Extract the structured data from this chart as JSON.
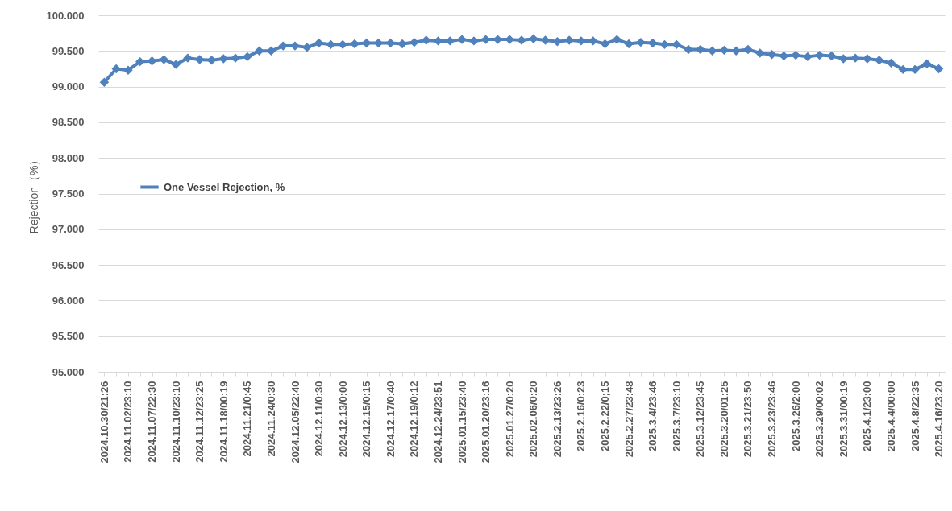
{
  "chart_data": {
    "type": "line",
    "ylabel": "Rejection（%）",
    "categories": [
      "2024.10.30/21:26",
      null,
      "2024.11.02/23:10",
      null,
      "2024.11.07/22:30",
      null,
      "2024.11.10/23:10",
      null,
      "2024.11.12/23:25",
      null,
      "2024.11.18/00:19",
      null,
      "2024.11.21/0:45",
      null,
      "2024.11.24/0:30",
      null,
      "2024.12.05/22:40",
      null,
      "2024.12.11/0:30",
      null,
      "2024.12.13/0:00",
      null,
      "2024.12.15/0:15",
      null,
      "2024.12.17/0:40",
      null,
      "2024.12.19/0:12",
      null,
      "2024.12.24/23:51",
      null,
      "2025.01.15/23:40",
      null,
      "2025.01.20/23:16",
      null,
      "2025.01.27/0:20",
      null,
      "2025.02.06/0:20",
      null,
      "2025.2.13/23:26",
      null,
      "2025.2.16/0:23",
      null,
      "2025.2.22/0;15",
      null,
      "2025.2.27/23:48",
      null,
      "2025.3.4/23:46",
      null,
      "2025.3.7/23:10",
      null,
      "2025.3.12/23:45",
      null,
      "2025.3.20/01:25",
      null,
      "2025.3.21/23:50",
      null,
      "2025.3.23/23:46",
      null,
      "2025.3.26/2:00",
      null,
      "2025.3.29/00:02",
      null,
      "2025.3.31/00:19",
      null,
      "2025.4.1/23:00",
      null,
      "2025.4.4/00:00",
      null,
      "2025.4.8/22:35",
      null,
      "2025.4.16/23:20"
    ],
    "series": [
      {
        "name": "One Vessel Rejection, %",
        "color": "#4f81bd",
        "values": [
          99.06,
          99.25,
          99.23,
          99.35,
          99.36,
          99.38,
          99.31,
          99.4,
          99.38,
          99.37,
          99.39,
          99.4,
          99.42,
          99.5,
          99.5,
          99.57,
          99.57,
          99.55,
          99.61,
          99.59,
          99.59,
          99.6,
          99.61,
          99.61,
          99.61,
          99.6,
          99.62,
          99.65,
          99.64,
          99.64,
          99.66,
          99.64,
          99.66,
          99.66,
          99.66,
          99.65,
          99.67,
          99.65,
          99.63,
          99.65,
          99.64,
          99.64,
          99.6,
          99.66,
          99.6,
          99.62,
          99.61,
          99.59,
          99.59,
          99.52,
          99.52,
          99.5,
          99.51,
          99.5,
          99.52,
          99.47,
          99.45,
          99.43,
          99.44,
          99.42,
          99.44,
          99.43,
          99.39,
          99.4,
          99.39,
          99.37,
          99.33,
          99.24,
          99.24,
          99.32,
          99.25
        ]
      }
    ],
    "ylim": [
      95,
      100
    ],
    "yticks": [
      {
        "value": 95,
        "label": "95.000"
      },
      {
        "value": 95.5,
        "label": "95.500"
      },
      {
        "value": 96,
        "label": "96.000"
      },
      {
        "value": 96.5,
        "label": "96.500"
      },
      {
        "value": 97,
        "label": "97.000"
      },
      {
        "value": 97.5,
        "label": "97.500"
      },
      {
        "value": 98,
        "label": "98.000"
      },
      {
        "value": 98.5,
        "label": "98.500"
      },
      {
        "value": 99,
        "label": "99.000"
      },
      {
        "value": 99.5,
        "label": "99.500"
      },
      {
        "value": 100,
        "label": "100.000"
      }
    ],
    "grid": "y",
    "legend": "left",
    "marker": "diamond",
    "line_style": "solid"
  }
}
